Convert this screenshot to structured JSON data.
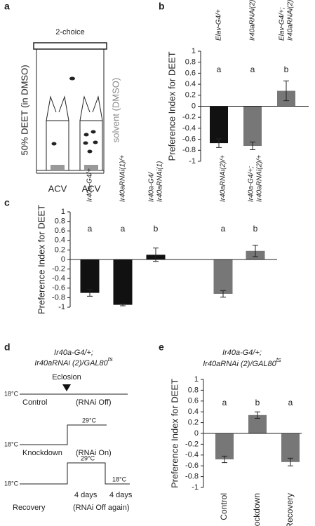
{
  "panels": {
    "a": {
      "label": "a",
      "title": "2-choice",
      "left_label": "50% DEET (in DMSO)",
      "right_label": "solvent (DMSO)",
      "traps": [
        "ACV",
        "ACV"
      ]
    },
    "b": {
      "label": "b"
    },
    "c": {
      "label": "c"
    },
    "e": {
      "label": "e"
    },
    "d": {
      "label": "d",
      "title_lines": [
        "Ir40a-G4/+;",
        "Ir40aRNAi (2)/GAL80"
      ],
      "title_superscript": "ts",
      "event": "Eclosion",
      "rows": [
        {
          "name": "Control",
          "state": "(RNAi Off)",
          "temps": [
            "18°C"
          ]
        },
        {
          "name": "Knockdown",
          "state": "(RNAi On)",
          "temps": [
            "18°C",
            "29°C"
          ]
        },
        {
          "name": "Recovery",
          "state": "(RNAi Off again)",
          "temps": [
            "18°C",
            "29°C",
            "18°C"
          ],
          "durations": [
            "4 days",
            "4 days"
          ]
        }
      ]
    }
  },
  "chart_data": [
    {
      "type": "bar",
      "ylabel": "Preference Index for DEET",
      "categories": [
        [
          "Elav-G4/+"
        ],
        [
          "Ir40aRNAi(2)/+"
        ],
        [
          "Elav-G4/+;",
          "Ir40aRNAi(2)/+"
        ]
      ],
      "values": [
        -0.67,
        -0.72,
        0.28
      ],
      "errors": [
        0.08,
        0.07,
        0.18
      ],
      "colors": [
        "#111111",
        "#777777",
        "#777777"
      ],
      "letters": [
        "a",
        "a",
        "b"
      ],
      "ylim": [
        -1,
        1
      ],
      "yticks": [
        -1,
        -0.8,
        -0.6,
        -0.4,
        -0.2,
        0,
        0.2,
        0.4,
        0.6,
        0.8,
        1
      ]
    },
    {
      "type": "bar",
      "ylabel": "Preference Index for DEET",
      "categories": [
        [
          "Ir40a-G4/+"
        ],
        [
          "Ir40aRNAi(1)/+"
        ],
        [
          "Ir40a-G4/",
          "Ir40aRNAi(1)"
        ],
        null,
        [
          "Ir40aRNAi(2)/+"
        ],
        [
          "Ir40a-G4/+;",
          "Ir40aRNAi(2)/+"
        ]
      ],
      "values": [
        -0.7,
        -0.95,
        0.1,
        null,
        -0.72,
        0.18
      ],
      "errors": [
        0.07,
        0.02,
        0.14,
        null,
        0.07,
        0.12
      ],
      "colors": [
        "#111111",
        "#111111",
        "#111111",
        null,
        "#777777",
        "#777777"
      ],
      "letters": [
        "a",
        "a",
        "b",
        null,
        "a",
        "b"
      ],
      "ylim": [
        -1,
        1
      ],
      "yticks": [
        -1,
        -0.8,
        -0.6,
        -0.4,
        -0.2,
        0,
        0.2,
        0.4,
        0.6,
        0.8,
        1
      ]
    },
    {
      "type": "bar",
      "title_lines": [
        "Ir40a-G4/+;",
        "Ir40aRNAi (2)/GAL80"
      ],
      "title_superscript": "ts",
      "ylabel": "Preference Index for DEET",
      "categories": [
        "Control",
        "Knockdown",
        "Recovery"
      ],
      "values": [
        -0.48,
        0.34,
        -0.53
      ],
      "errors": [
        0.06,
        0.06,
        0.07
      ],
      "colors": [
        "#777777",
        "#777777",
        "#777777"
      ],
      "letters": [
        "a",
        "b",
        "a"
      ],
      "ylim": [
        -1,
        1
      ],
      "yticks": [
        -1,
        -0.8,
        -0.6,
        -0.4,
        -0.2,
        0,
        0.2,
        0.4,
        0.6,
        0.8,
        1
      ]
    }
  ]
}
